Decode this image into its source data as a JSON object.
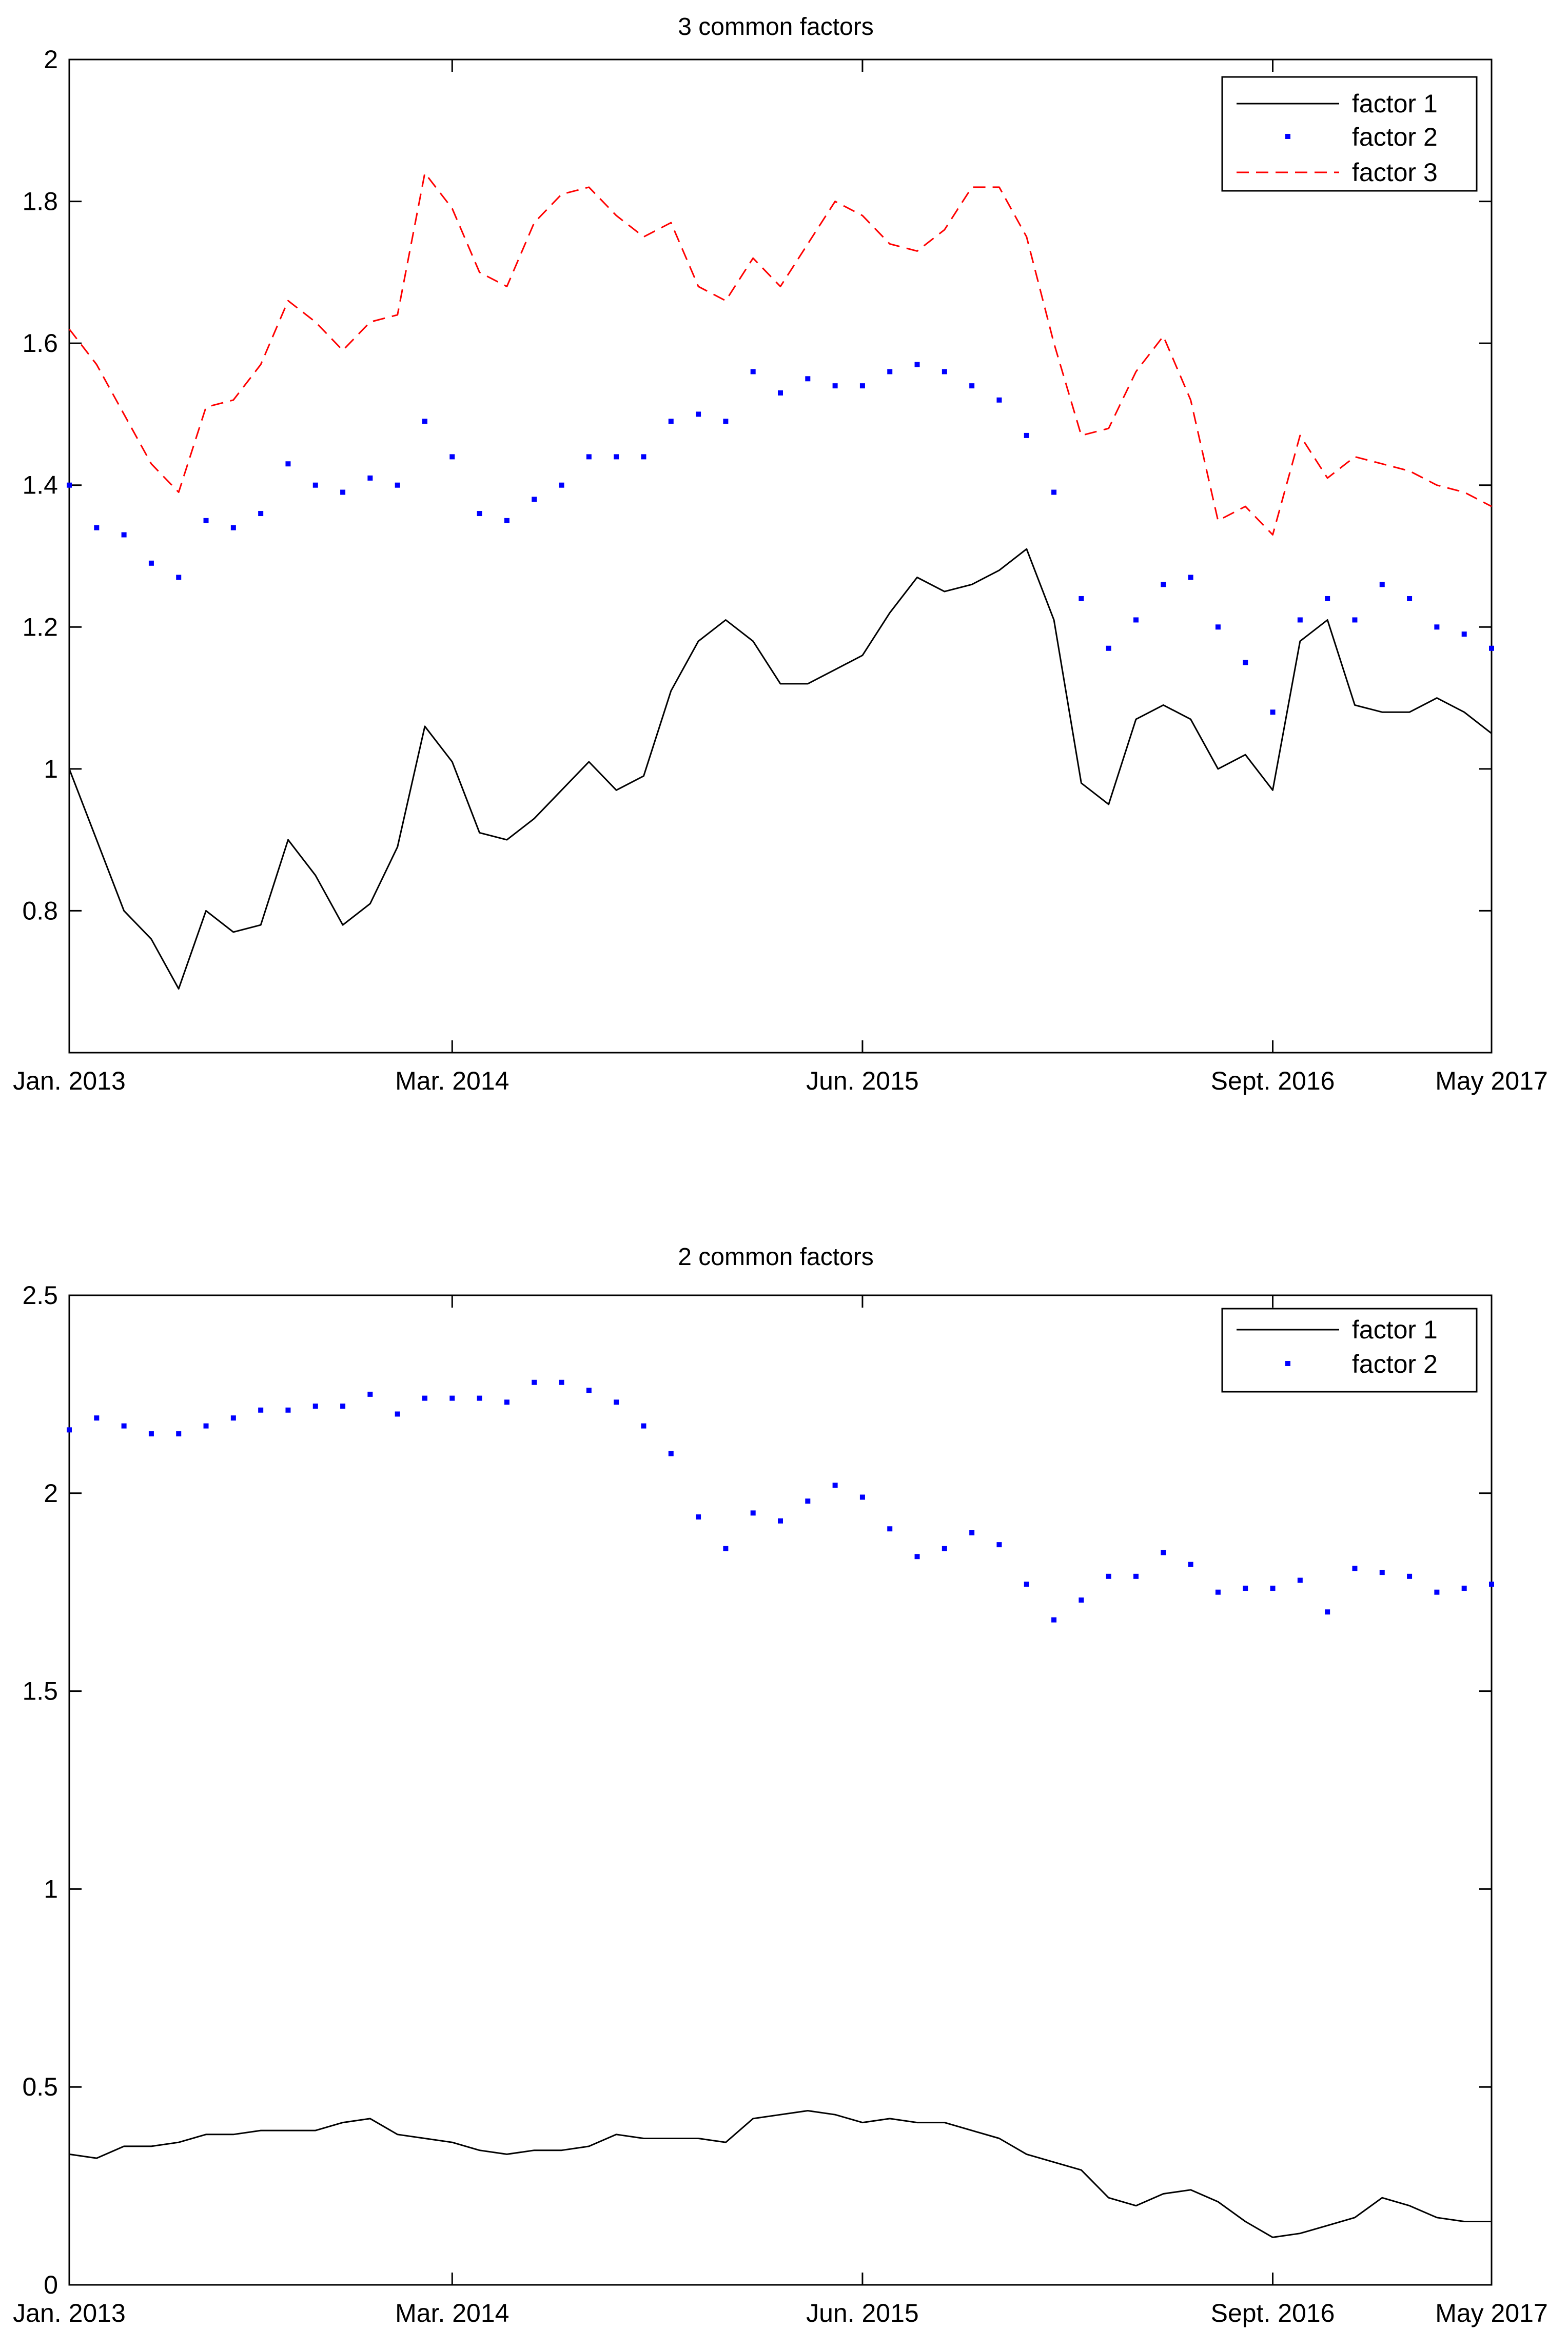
{
  "chart_data": [
    {
      "type": "line",
      "title": "3 common factors",
      "xlabel": "",
      "ylabel": "",
      "ylim": [
        0.6,
        2.0
      ],
      "yticks": [
        0.8,
        1,
        1.2,
        1.4,
        1.6,
        1.8,
        2
      ],
      "ytick_labels": [
        "0.8",
        "1",
        "1.2",
        "1.4",
        "1.6",
        "1.8",
        "2"
      ],
      "xlim": [
        1,
        53
      ],
      "xticks": [
        1,
        15,
        30,
        45,
        53
      ],
      "xtick_labels": [
        "Jan. 2013",
        "Mar. 2014",
        "Jun. 2015",
        "Sept. 2016",
        "May 2017"
      ],
      "legend_position": "top-right",
      "series": [
        {
          "name": "factor 1",
          "style": "solid",
          "color": "#000000",
          "values": [
            1.0,
            0.9,
            0.8,
            0.76,
            0.69,
            0.8,
            0.77,
            0.78,
            0.9,
            0.85,
            0.78,
            0.81,
            0.89,
            1.06,
            1.01,
            0.91,
            0.9,
            0.93,
            0.97,
            1.01,
            0.97,
            0.99,
            1.11,
            1.18,
            1.21,
            1.18,
            1.12,
            1.12,
            1.14,
            1.16,
            1.22,
            1.27,
            1.25,
            1.26,
            1.28,
            1.31,
            1.21,
            0.98,
            0.95,
            1.07,
            1.09,
            1.07,
            1.0,
            1.02,
            0.97,
            1.18,
            1.21,
            1.09,
            1.08,
            1.08,
            1.1,
            1.08,
            1.05
          ]
        },
        {
          "name": "factor 2",
          "style": "dotted",
          "color": "#0000ff",
          "values": [
            1.4,
            1.34,
            1.33,
            1.29,
            1.27,
            1.35,
            1.34,
            1.36,
            1.43,
            1.4,
            1.39,
            1.41,
            1.4,
            1.49,
            1.44,
            1.36,
            1.35,
            1.38,
            1.4,
            1.44,
            1.44,
            1.44,
            1.49,
            1.5,
            1.49,
            1.56,
            1.53,
            1.55,
            1.54,
            1.54,
            1.56,
            1.57,
            1.56,
            1.54,
            1.52,
            1.47,
            1.39,
            1.24,
            1.17,
            1.21,
            1.26,
            1.27,
            1.2,
            1.15,
            1.08,
            1.21,
            1.24,
            1.21,
            1.26,
            1.24,
            1.2,
            1.19,
            1.17
          ]
        },
        {
          "name": "factor 3",
          "style": "dashed",
          "color": "#ff0000",
          "values": [
            1.62,
            1.57,
            1.5,
            1.43,
            1.39,
            1.51,
            1.52,
            1.57,
            1.66,
            1.63,
            1.59,
            1.63,
            1.64,
            1.84,
            1.79,
            1.7,
            1.68,
            1.77,
            1.81,
            1.82,
            1.78,
            1.75,
            1.77,
            1.68,
            1.66,
            1.72,
            1.68,
            1.74,
            1.8,
            1.78,
            1.74,
            1.73,
            1.76,
            1.82,
            1.82,
            1.75,
            1.6,
            1.47,
            1.48,
            1.56,
            1.61,
            1.52,
            1.35,
            1.37,
            1.33,
            1.47,
            1.41,
            1.44,
            1.43,
            1.42,
            1.4,
            1.39,
            1.37
          ]
        }
      ]
    },
    {
      "type": "line",
      "title": "2 common factors",
      "xlabel": "",
      "ylabel": "",
      "ylim": [
        0,
        2.5
      ],
      "yticks": [
        0,
        0.5,
        1,
        1.5,
        2,
        2.5
      ],
      "ytick_labels": [
        "0",
        "0.5",
        "1",
        "1.5",
        "2",
        "2.5"
      ],
      "xlim": [
        1,
        53
      ],
      "xticks": [
        1,
        15,
        30,
        45,
        53
      ],
      "xtick_labels": [
        "Jan. 2013",
        "Mar. 2014",
        "Jun. 2015",
        "Sept. 2016",
        "May 2017"
      ],
      "legend_position": "top-right",
      "series": [
        {
          "name": "factor 1",
          "style": "solid",
          "color": "#000000",
          "values": [
            0.33,
            0.32,
            0.35,
            0.35,
            0.36,
            0.38,
            0.38,
            0.39,
            0.39,
            0.39,
            0.41,
            0.42,
            0.38,
            0.37,
            0.36,
            0.34,
            0.33,
            0.34,
            0.34,
            0.35,
            0.38,
            0.37,
            0.37,
            0.37,
            0.36,
            0.42,
            0.43,
            0.44,
            0.43,
            0.41,
            0.42,
            0.41,
            0.41,
            0.39,
            0.37,
            0.33,
            0.31,
            0.29,
            0.22,
            0.2,
            0.23,
            0.24,
            0.21,
            0.16,
            0.12,
            0.13,
            0.15,
            0.17,
            0.22,
            0.2,
            0.17,
            0.16,
            0.16
          ]
        },
        {
          "name": "factor 2",
          "style": "dotted",
          "color": "#0000ff",
          "values": [
            2.16,
            2.19,
            2.17,
            2.15,
            2.15,
            2.17,
            2.19,
            2.21,
            2.21,
            2.22,
            2.22,
            2.25,
            2.2,
            2.24,
            2.24,
            2.24,
            2.23,
            2.28,
            2.28,
            2.26,
            2.23,
            2.17,
            2.1,
            1.94,
            1.86,
            1.95,
            1.93,
            1.98,
            2.02,
            1.99,
            1.91,
            1.84,
            1.86,
            1.9,
            1.87,
            1.77,
            1.68,
            1.73,
            1.79,
            1.79,
            1.85,
            1.82,
            1.75,
            1.76,
            1.76,
            1.78,
            1.7,
            1.81,
            1.8,
            1.79,
            1.75,
            1.76,
            1.77
          ]
        }
      ]
    }
  ]
}
